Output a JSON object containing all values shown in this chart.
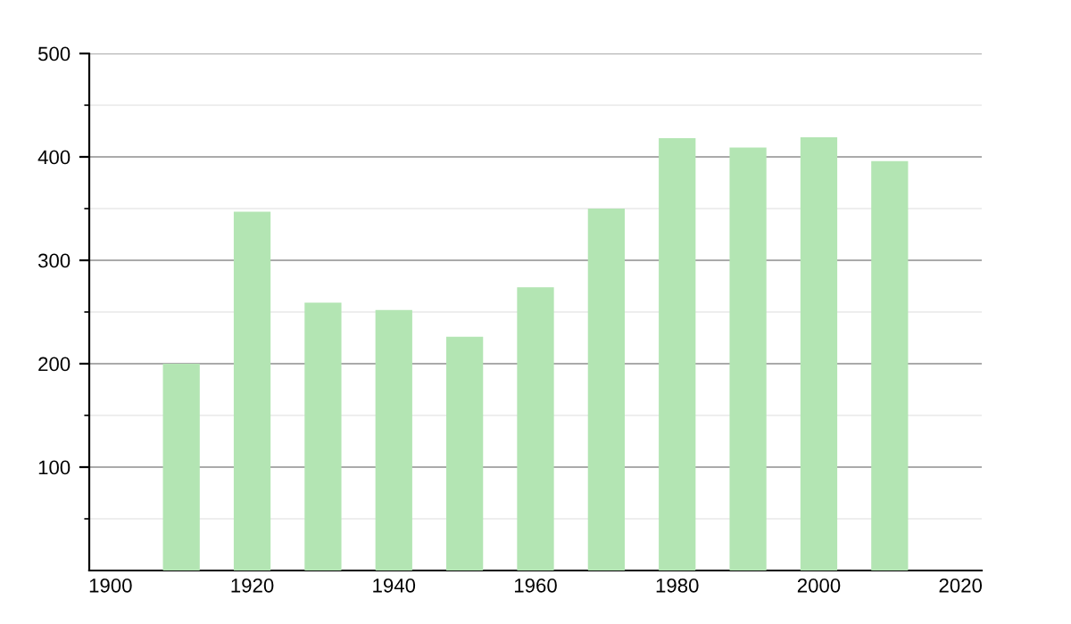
{
  "chart_data": {
    "type": "bar",
    "x": [
      1910,
      1920,
      1930,
      1940,
      1950,
      1960,
      1970,
      1980,
      1990,
      2000,
      2010
    ],
    "values": [
      200,
      347,
      259,
      252,
      226,
      274,
      350,
      418,
      409,
      419,
      396
    ],
    "color": "#b3e5b3",
    "xlim": [
      1897,
      2023
    ],
    "xticks": [
      1900,
      1920,
      1940,
      1960,
      1980,
      2000,
      2020
    ],
    "ylim": [
      0,
      500
    ],
    "yticks": [
      {
        "value": 50,
        "label": null
      },
      100,
      {
        "value": 150,
        "label": null
      },
      200,
      {
        "value": 250,
        "label": null
      },
      300,
      {
        "value": 350,
        "label": null
      },
      400,
      {
        "value": 450,
        "label": null
      },
      500
    ],
    "grid": "y"
  }
}
